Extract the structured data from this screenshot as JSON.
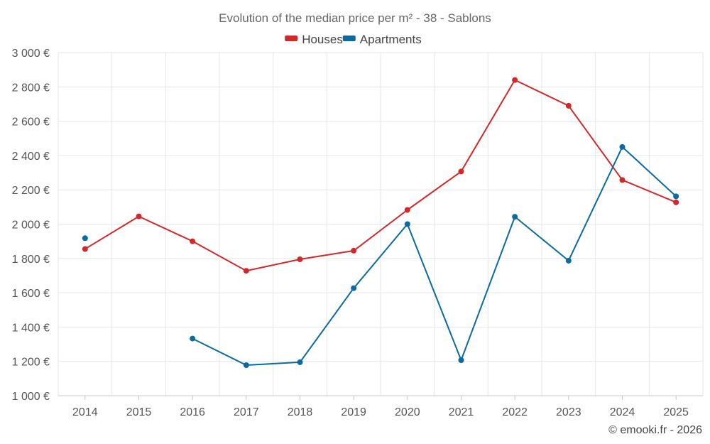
{
  "chart_data": {
    "type": "line",
    "title": "Evolution of the median price per m² - 38 - Sablons",
    "xlabel": "",
    "ylabel": "",
    "categories": [
      "2014",
      "2015",
      "2016",
      "2017",
      "2018",
      "2019",
      "2020",
      "2021",
      "2022",
      "2023",
      "2024",
      "2025"
    ],
    "ylim": [
      1000,
      3000
    ],
    "yticks": [
      1000,
      1200,
      1400,
      1600,
      1800,
      2000,
      2200,
      2400,
      2600,
      2800,
      3000
    ],
    "ytick_labels": [
      "1 000 €",
      "1 200 €",
      "1 400 €",
      "1 600 €",
      "1 800 €",
      "2 000 €",
      "2 200 €",
      "2 400 €",
      "2 600 €",
      "2 800 €",
      "3 000 €"
    ],
    "grid": true,
    "legend_position": "top-center",
    "series": [
      {
        "name": "Houses",
        "color": "#d62728",
        "values": [
          1855,
          2045,
          1900,
          1728,
          1795,
          1845,
          2083,
          2307,
          2840,
          2690,
          2257,
          2127
        ]
      },
      {
        "name": "Apartments",
        "color": "#0b6a9e",
        "values": [
          1918,
          null,
          1333,
          1178,
          1195,
          1627,
          2000,
          1207,
          2043,
          1787,
          2450,
          2162
        ]
      }
    ]
  },
  "credit": "© emooki.fr - 2026"
}
